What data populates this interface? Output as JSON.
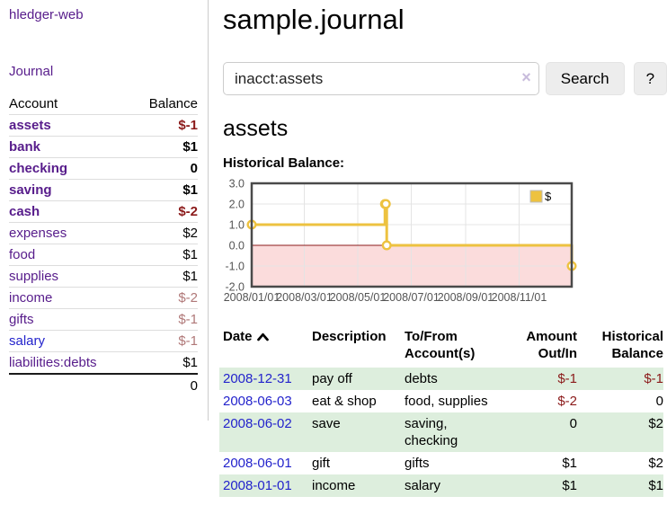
{
  "colors": {
    "purple": "#571c8b",
    "blue": "#2323cc",
    "negStrong": "#8b1a1a",
    "negSoft": "#b07878",
    "stripe": "#ddeedd",
    "btnBg": "#ededed"
  },
  "sidebar": {
    "brand": "hledger-web",
    "nav": {
      "journal": "Journal"
    },
    "accounts_table": {
      "header": {
        "account": "Account",
        "balance": "Balance"
      },
      "rows": [
        {
          "name": "assets",
          "level": 1,
          "bold": true,
          "balance": "$-1",
          "balance_style": "neg-strong"
        },
        {
          "name": "bank",
          "level": 2,
          "bold": true,
          "balance": "$1",
          "balance_style": "pos"
        },
        {
          "name": "checking",
          "level": 3,
          "bold": true,
          "balance": "0",
          "balance_style": "pos"
        },
        {
          "name": "saving",
          "level": 3,
          "bold": true,
          "balance": "$1",
          "balance_style": "pos"
        },
        {
          "name": "cash",
          "level": 2,
          "bold": true,
          "balance": "$-2",
          "balance_style": "neg-strong"
        },
        {
          "name": "expenses",
          "level": 1,
          "bold": false,
          "balance": "$2",
          "balance_style": "pos"
        },
        {
          "name": "food",
          "level": 2,
          "bold": false,
          "balance": "$1",
          "balance_style": "pos"
        },
        {
          "name": "supplies",
          "level": 2,
          "bold": false,
          "balance": "$1",
          "balance_style": "pos"
        },
        {
          "name": "income",
          "level": 1,
          "bold": false,
          "balance": "$-2",
          "balance_style": "neg-soft"
        },
        {
          "name": "gifts",
          "level": 2,
          "bold": false,
          "balance": "$-1",
          "balance_style": "neg-soft"
        },
        {
          "name": "salary",
          "level": 2,
          "bold": false,
          "balance": "$-1",
          "balance_style": "neg-soft",
          "link_color": "blue"
        },
        {
          "name": "liabilities:debts",
          "level": 1,
          "bold": false,
          "balance": "$1",
          "balance_style": "pos"
        }
      ],
      "total": "0"
    }
  },
  "header": {
    "title": "sample.journal",
    "search": {
      "value": "inacct:assets",
      "clear_icon": "×",
      "button": "Search",
      "help_button": "?"
    }
  },
  "account_view": {
    "heading": "assets",
    "chart_title": "Historical Balance:"
  },
  "chart_data": {
    "type": "line",
    "step": true,
    "title": "Historical Balance of assets",
    "legend": [
      {
        "label": "$",
        "color": "#edc240"
      }
    ],
    "legend_position": "top-right",
    "x_dates": [
      "2008-01-01",
      "2008-06-01",
      "2008-06-02",
      "2008-06-03",
      "2008-12-31"
    ],
    "x_days": [
      0,
      152,
      153,
      154,
      365
    ],
    "values": [
      1,
      2,
      2,
      0,
      -1
    ],
    "x_max_days": 365,
    "ylim": [
      -2,
      3
    ],
    "yticks": [
      3.0,
      2.0,
      1.0,
      0.0,
      -1.0,
      -2.0
    ],
    "ytick_labels": [
      "3.0",
      "2.0",
      "1.0",
      "0.0",
      "-1.0",
      "-2.0"
    ],
    "xtick_days": [
      0,
      60,
      121,
      182,
      244,
      305
    ],
    "xtick_labels": [
      "2008/01/01",
      "2008/03/01",
      "2008/05/01",
      "2008/07/01",
      "2008/09/01",
      "2008/11/01"
    ],
    "grid": true,
    "line_color": "#edc240",
    "marker_fill": "#ffffff",
    "negative_region_color": "#fbdcdc",
    "zero_line_color": "#8b1a1a",
    "grid_color": "#e4e4e4",
    "border_color": "#4a4a4a"
  },
  "register": {
    "headers": {
      "date": "Date",
      "sort": "asc",
      "description": "Description",
      "tofrom": [
        "To/From",
        "Account(s)"
      ],
      "amount": [
        "Amount",
        "Out/In"
      ],
      "balance": [
        "Historical",
        "Balance"
      ]
    },
    "rows": [
      {
        "date": "2008-12-31",
        "description": "pay off",
        "accounts": "debts",
        "amount": "$-1",
        "amount_neg": true,
        "balance": "$-1",
        "balance_neg": true,
        "shaded": true
      },
      {
        "date": "2008-06-03",
        "description": "eat & shop",
        "accounts": "food, supplies",
        "amount": "$-2",
        "amount_neg": true,
        "balance": "0",
        "balance_neg": false,
        "shaded": false
      },
      {
        "date": "2008-06-02",
        "description": "save",
        "accounts": "saving, checking",
        "amount": "0",
        "amount_neg": false,
        "balance": "$2",
        "balance_neg": false,
        "shaded": true
      },
      {
        "date": "2008-06-01",
        "description": "gift",
        "accounts": "gifts",
        "amount": "$1",
        "amount_neg": false,
        "balance": "$2",
        "balance_neg": false,
        "shaded": false
      },
      {
        "date": "2008-01-01",
        "description": "income",
        "accounts": "salary",
        "amount": "$1",
        "amount_neg": false,
        "balance": "$1",
        "balance_neg": false,
        "shaded": true
      }
    ]
  }
}
